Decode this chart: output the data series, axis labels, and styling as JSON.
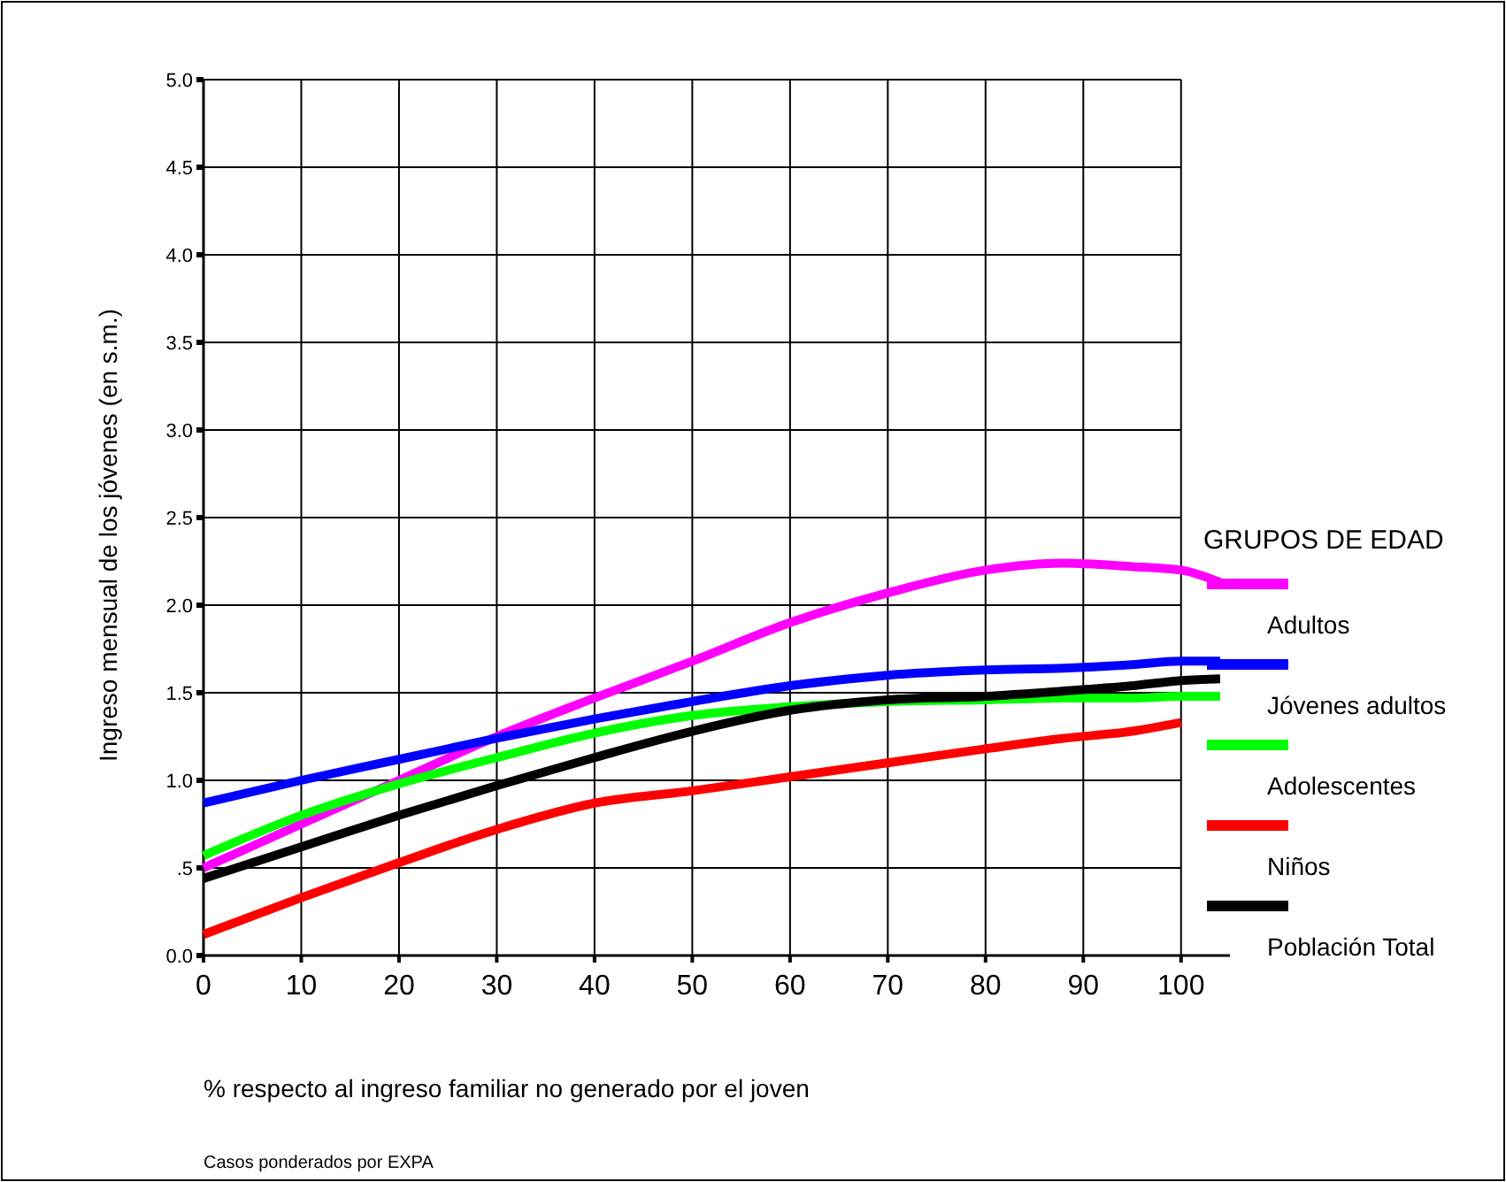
{
  "chart_data": {
    "type": "line",
    "xlabel": "% respecto al ingreso familiar no generado por el joven",
    "ylabel": "Ingreso mensual de los jóvenes (en s.m.)",
    "legend_title": "GRUPOS DE EDAD",
    "annotations": [
      "Casos ponderados por EXPA"
    ],
    "x": [
      0,
      10,
      20,
      30,
      40,
      50,
      60,
      70,
      80,
      88,
      95,
      100,
      104
    ],
    "xlim": [
      0,
      105
    ],
    "xticks": [
      0,
      10,
      20,
      30,
      40,
      50,
      60,
      70,
      80,
      90,
      100
    ],
    "ylim": [
      0,
      5
    ],
    "yticks": [
      {
        "value": 0,
        "label": "0.0"
      },
      {
        "value": 0.5,
        "label": ".5"
      },
      {
        "value": 1,
        "label": "1.0"
      },
      {
        "value": 1.5,
        "label": "1.5"
      },
      {
        "value": 2,
        "label": "2.0"
      },
      {
        "value": 2.5,
        "label": "2.5"
      },
      {
        "value": 3,
        "label": "3.0"
      },
      {
        "value": 3.5,
        "label": "3.5"
      },
      {
        "value": 4,
        "label": "4.0"
      },
      {
        "value": 4.5,
        "label": "4.5"
      },
      {
        "value": 5,
        "label": "5.0"
      }
    ],
    "grid": true,
    "legend": "right",
    "marker": "none",
    "line_style": "solid",
    "series": [
      {
        "name": "Adultos",
        "color": "#ff00ff",
        "values": [
          0.5,
          0.75,
          1.0,
          1.25,
          1.47,
          1.68,
          1.9,
          2.07,
          2.2,
          2.24,
          2.22,
          2.2,
          2.13
        ]
      },
      {
        "name": "Jóvenes adultos",
        "color": "#0000ff",
        "values": [
          0.87,
          1.0,
          1.12,
          1.24,
          1.35,
          1.45,
          1.54,
          1.6,
          1.63,
          1.64,
          1.66,
          1.68,
          1.68
        ]
      },
      {
        "name": "Adolescentes",
        "color": "#00ff00",
        "values": [
          0.57,
          0.8,
          0.98,
          1.13,
          1.27,
          1.37,
          1.42,
          1.45,
          1.46,
          1.47,
          1.47,
          1.48,
          1.48
        ]
      },
      {
        "name": "Niños",
        "color": "#ff0000",
        "values": [
          0.12,
          0.33,
          0.53,
          0.72,
          0.87,
          0.94,
          1.02,
          1.1,
          1.18,
          1.24,
          1.28,
          1.33,
          null
        ]
      },
      {
        "name": "Población Total",
        "color": "#000000",
        "values": [
          0.44,
          0.62,
          0.8,
          0.97,
          1.13,
          1.28,
          1.4,
          1.46,
          1.48,
          1.51,
          1.54,
          1.57,
          1.58
        ]
      }
    ]
  }
}
